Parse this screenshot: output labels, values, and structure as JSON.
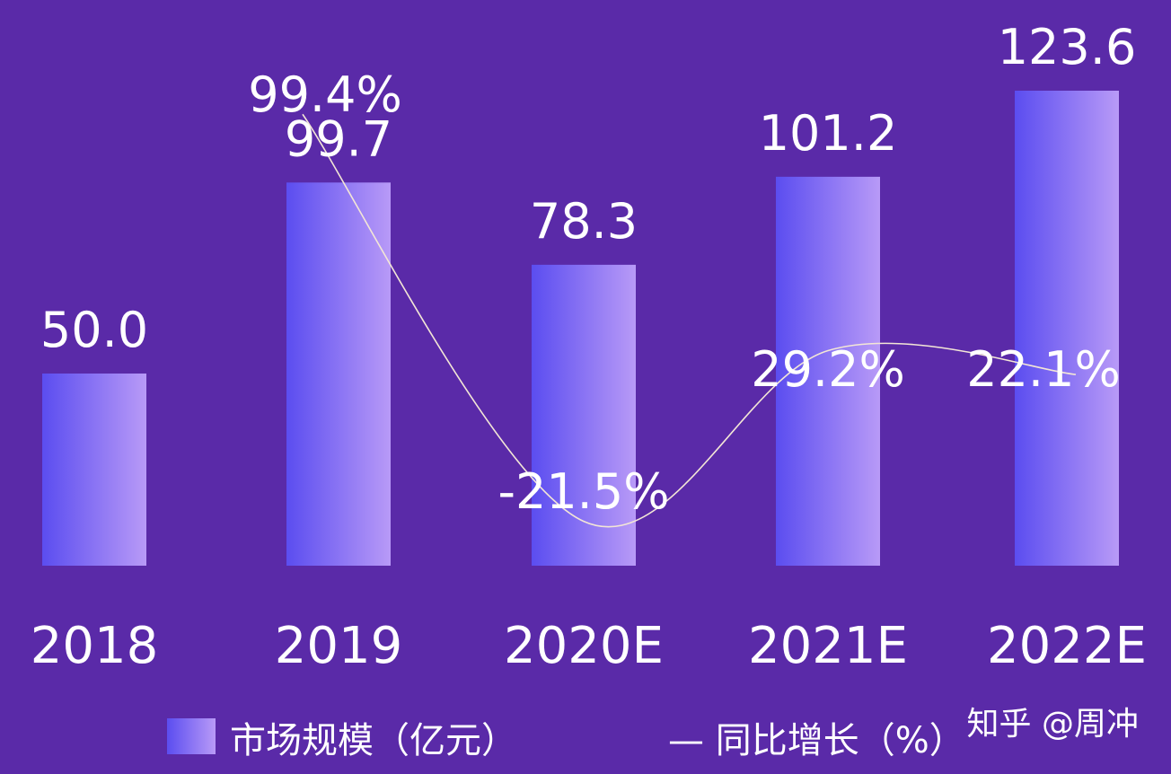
{
  "chart_data": {
    "type": "bar",
    "categories": [
      "2018",
      "2019",
      "2020E",
      "2021E",
      "2022E"
    ],
    "series": [
      {
        "name": "市场规模（亿元）",
        "type": "bar",
        "values": [
          50.0,
          99.7,
          78.3,
          101.2,
          123.6
        ],
        "labels": [
          "50.0",
          "99.7",
          "78.3",
          "101.2",
          "123.6"
        ]
      },
      {
        "name": "同比增长（%）",
        "type": "line",
        "values": [
          null,
          99.4,
          -21.5,
          29.2,
          22.1
        ],
        "labels": [
          "",
          "99.4%",
          "-21.5%",
          "29.2%",
          "22.1%"
        ]
      }
    ],
    "ylim": [
      0,
      140
    ],
    "grid": false,
    "legend": "bottom",
    "legend_items": [
      {
        "marker": "bar",
        "text": "市场规模（亿元）"
      },
      {
        "marker": "line",
        "text": "— 同比增长（%）"
      }
    ],
    "colors": {
      "background": "#5a2aa8",
      "bar_left": "#5b4df0",
      "bar_right": "#b89af7",
      "line": "#f3e6d6",
      "text": "#ffffff"
    }
  },
  "watermark": "知乎 @周冲"
}
